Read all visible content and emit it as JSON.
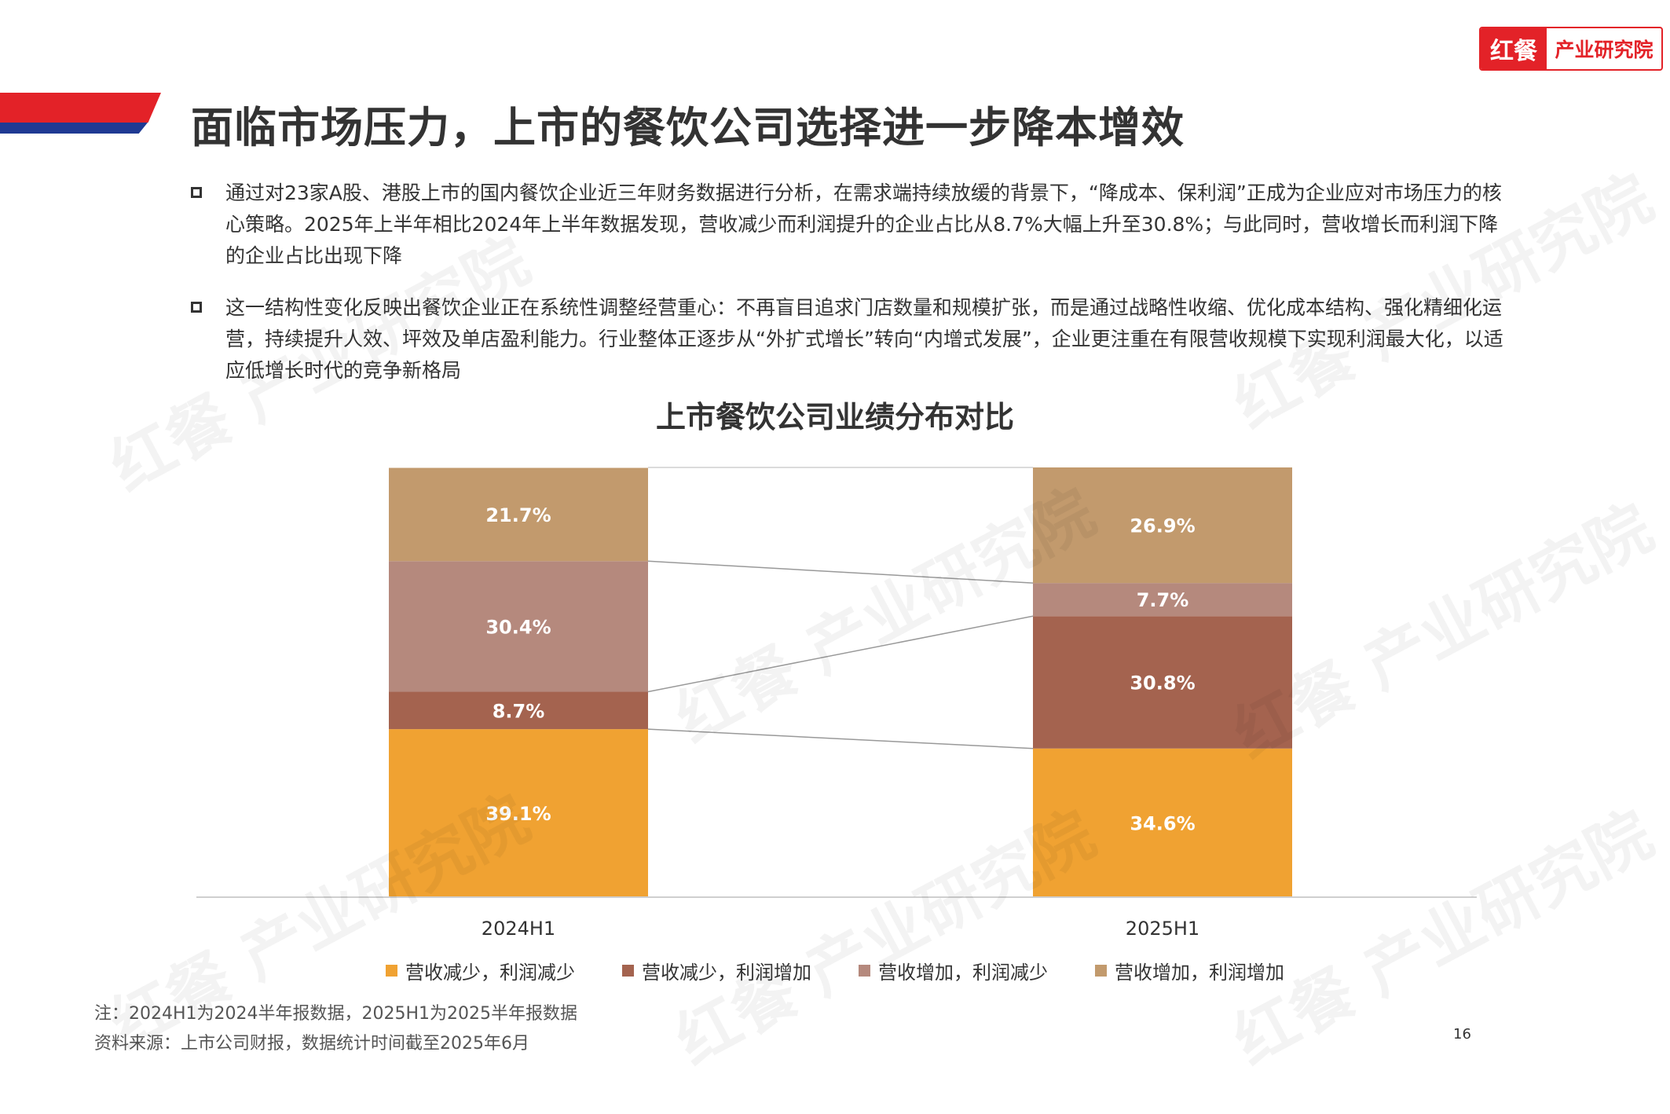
{
  "header": {
    "title": "面临市场压力，上市的餐饮公司选择进一步降本增效",
    "logo_mark": "红餐",
    "logo_text": "产业研究院"
  },
  "bullets": [
    "通过对23家A股、港股上市的国内餐饮企业近三年财务数据进行分析，在需求端持续放缓的背景下，“降成本、保利润”正成为企业应对市场压力的核心策略。2025年上半年相比2024年上半年数据发现，营收减少而利润提升的企业占比从8.7%大幅上升至30.8%；与此同时，营收增长而利润下降的企业占比出现下降",
    "这一结构性变化反映出餐饮企业正在系统性调整经营重心：不再盲目追求门店数量和规模扩张，而是通过战略性收缩、优化成本结构、强化精细化运营，持续提升人效、坪效及单店盈利能力。行业整体正逐步从“外扩式增长”转向“内增式发展”，企业更注重在有限营收规模下实现利润最大化，以适应低增长时代的竞争新格局"
  ],
  "chart_data": {
    "type": "bar",
    "stacked": true,
    "title": "上市餐饮公司业绩分布对比",
    "categories": [
      "2024H1",
      "2025H1"
    ],
    "series": [
      {
        "name": "营收减少，利润减少",
        "values": [
          39.1,
          34.6
        ],
        "labels": [
          "39.1%",
          "34.6%"
        ],
        "color": "#f0a232"
      },
      {
        "name": "营收减少，利润增加",
        "values": [
          8.7,
          30.8
        ],
        "labels": [
          "8.7%",
          "30.8%"
        ],
        "color": "#a4634f"
      },
      {
        "name": "营收增加，利润减少",
        "values": [
          30.4,
          7.7
        ],
        "labels": [
          "30.4%",
          "7.7%"
        ],
        "color": "#b5897d"
      },
      {
        "name": "营收增加，利润增加",
        "values": [
          21.7,
          26.9
        ],
        "labels": [
          "21.7%",
          "26.9%"
        ],
        "color": "#c29a6d"
      }
    ],
    "ylim": [
      0,
      100
    ],
    "legend": "bottom",
    "grid": false
  },
  "notes": {
    "note": "注：2024H1为2024半年报数据，2025H1为2025半年报数据",
    "source": "资料来源：上市公司财报，数据统计时间截至2025年6月"
  },
  "page_number": "16",
  "watermark": "红餐 产业研究院"
}
